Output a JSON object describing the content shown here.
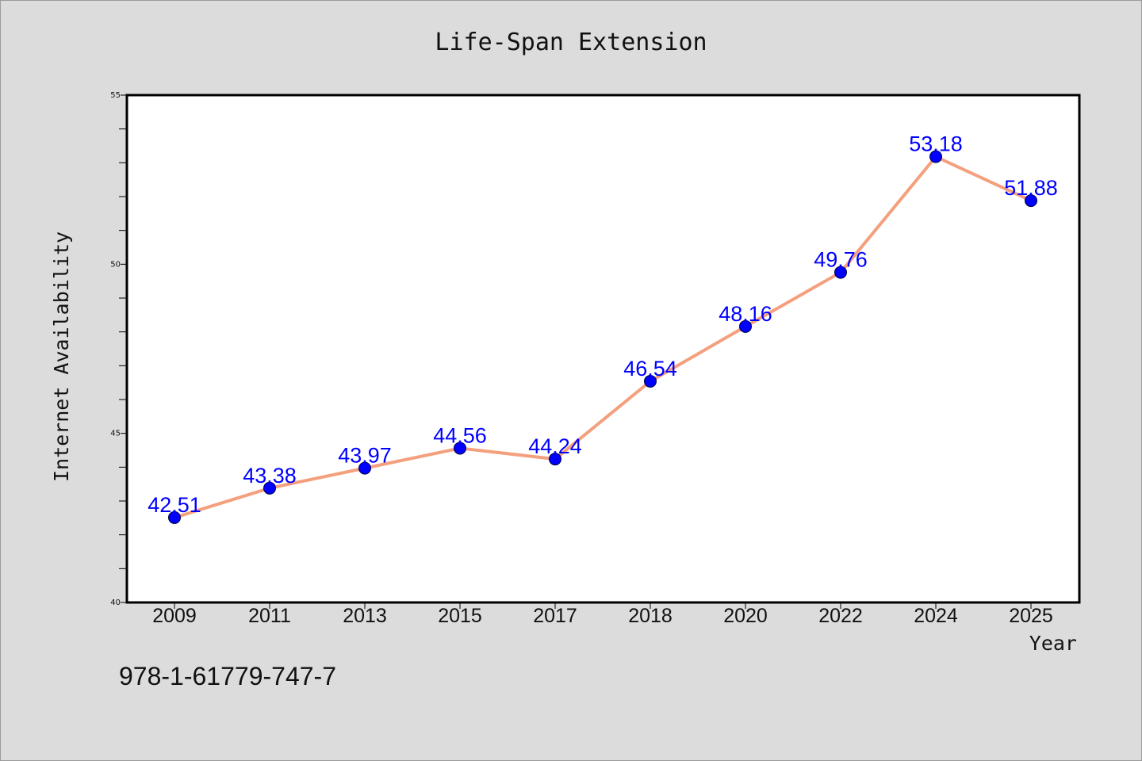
{
  "figure": {
    "footer_text": "978-1-61779-747-7"
  },
  "chart_data": {
    "type": "line",
    "title": "Life-Span Extension",
    "xlabel": "Year",
    "ylabel": "Internet Availability",
    "categories": [
      "2009",
      "2011",
      "2013",
      "2015",
      "2017",
      "2018",
      "2020",
      "2022",
      "2024",
      "2025"
    ],
    "series": [
      {
        "values": [
          42.51,
          43.38,
          43.97,
          44.56,
          44.24,
          46.54,
          48.16,
          49.76,
          53.18,
          51.88
        ],
        "data_labels": [
          "42.51",
          "43.38",
          "43.97",
          "44.56",
          "44.24",
          "46.54",
          "48.16",
          "49.76",
          "53.18",
          "51.88"
        ]
      }
    ],
    "ylim": [
      40,
      55
    ],
    "y_ticks": [
      40,
      45,
      50,
      55
    ],
    "y_minor_tick_step": 1,
    "grid": false,
    "line_color": "#f4a07e",
    "marker_color": "#0000ff",
    "label_color": "#0000ff",
    "background_color": "#dcdcdc",
    "plot_background_color": "#ffffff"
  }
}
